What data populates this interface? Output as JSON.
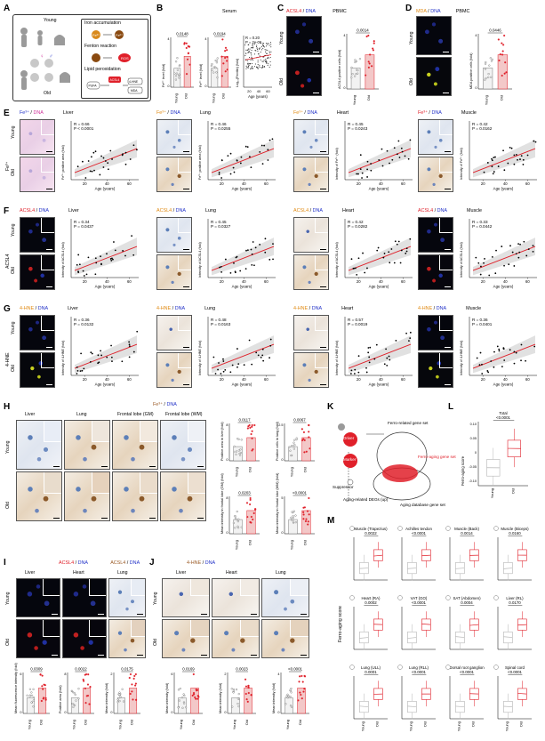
{
  "panel_letters": [
    "A",
    "B",
    "C",
    "D",
    "E",
    "F",
    "G",
    "H",
    "I",
    "J",
    "K",
    "L",
    "M"
  ],
  "panel_a": {
    "young": "Young",
    "old": "Old",
    "steps": [
      "Iron accumulation",
      "Fenton reaction",
      "Lipid peroxidation"
    ],
    "molecules": [
      "Fe³⁺",
      "Fe²⁺",
      "•OH",
      "PUFA",
      "ACSL4",
      "4-HNE",
      "MDA"
    ]
  },
  "panel_b": {
    "title": "Serum",
    "ylabel_1": "Fe²⁺ level (fold)",
    "ylabel_2": "Fe³⁺ level (fold)",
    "ylabel_3": "Log₁₀(Ferritin) (fold)",
    "pvalue_1": "0.0148",
    "pvalue_2": "0.0194",
    "corr_r": "R = 0.20",
    "corr_p": "P = 2e-06",
    "xlabel": "Age (years)",
    "groups": [
      "Young",
      "Old"
    ]
  },
  "panel_c": {
    "stain_red": "ACSL4",
    "stain_blue": "DNA",
    "title": "PBMC",
    "ylabel": "ACSL4 positive cells (fold)",
    "pvalue": "0.0014",
    "rows": [
      "Young",
      "Old"
    ]
  },
  "panel_d": {
    "stain_orange": "MDA",
    "stain_blue": "DNA",
    "title": "PBMC",
    "ylabel": "MDA positive cells (fold)",
    "pvalue": "0.0446",
    "rows": [
      "Young",
      "Old"
    ]
  },
  "row_e": {
    "marker": "Fe³⁺",
    "side_label": "Fe³⁺",
    "panels": [
      {
        "stain": "Fe³⁺",
        "second": "DNA",
        "tissue": "Liver",
        "r": "R = 0.66",
        "p": "P < 0.0001",
        "ylabel": "Fe³⁺ positive area (fold)"
      },
      {
        "stain": "Fe³⁺",
        "second": "DNA",
        "tissue": "Lung",
        "r": "R = 0.46",
        "p": "P = 0.0255",
        "ylabel": "Fe³⁺ positive area (fold)"
      },
      {
        "stain": "Fe³⁺",
        "second": "DNA",
        "tissue": "Heart",
        "r": "R = 0.45",
        "p": "P = 0.0243",
        "ylabel": "Intensity of Fe³⁺ (fold)"
      },
      {
        "stain": "Fe³⁺",
        "second": "DNA",
        "tissue": "Muscle",
        "r": "R = 0.42",
        "p": "P = 0.0162",
        "ylabel": "Intensity of Fe³⁺ (fold)"
      }
    ]
  },
  "row_f": {
    "side_label": "ACSL4",
    "panels": [
      {
        "stain": "ACSL4",
        "second": "DNA",
        "tissue": "Liver",
        "r": "R = 0.34",
        "p": "P = 0.0437",
        "ylabel": "Intensity of ACSL4 (fold)"
      },
      {
        "stain": "ACSL4",
        "second": "DNA",
        "tissue": "Lung",
        "r": "R = 0.45",
        "p": "P = 0.0327",
        "ylabel": "Intensity of ACSL4 (fold)"
      },
      {
        "stain": "ACSL4",
        "second": "DNA",
        "tissue": "Heart",
        "r": "R = 0.42",
        "p": "P = 0.0282",
        "ylabel": "Intensity of ACSL4 (fold)"
      },
      {
        "stain": "ACSL4",
        "second": "DNA",
        "tissue": "Muscle",
        "r": "R = 0.33",
        "p": "P = 0.0442",
        "ylabel": "Intensity of ACSL4 (fold)"
      }
    ]
  },
  "row_g": {
    "side_label": "4-HNE",
    "panels": [
      {
        "stain": "4-HNE",
        "second": "DNA",
        "tissue": "Liver",
        "r": "R = 0.36",
        "p": "P = 0.0132",
        "ylabel": "Intensity of 4-HNE (fold)"
      },
      {
        "stain": "4-HNE",
        "second": "DNA",
        "tissue": "Lung",
        "r": "R = 0.48",
        "p": "P = 0.0163",
        "ylabel": "Intensity of 4-HNE (fold)"
      },
      {
        "stain": "4-HNE",
        "second": "DNA",
        "tissue": "Heart",
        "r": "R = 0.57",
        "p": "P = 0.0019",
        "ylabel": "Intensity of 4-HNE (fold)"
      },
      {
        "stain": "4-HNE",
        "second": "DNA",
        "tissue": "Muscle",
        "r": "R = 0.36",
        "p": "P = 0.0401",
        "ylabel": "Intensity of 4-HNE (fold)"
      }
    ]
  },
  "age_axis": {
    "xlabel": "Age (years)",
    "ticks": [
      "20",
      "40",
      "60"
    ]
  },
  "row_labels": {
    "young": "Young",
    "old": "Old"
  },
  "panel_h": {
    "stain": "Fe³⁺",
    "second": "DNA",
    "tissues": [
      "Liver",
      "Lung",
      "Frontal lobe (GM)",
      "Frontal lobe (WM)"
    ],
    "p1": "0.0117",
    "p2": "0.0067",
    "p3": "0.0203",
    "p4": "<0.0001",
    "y1": "Positive area in liver (fold)",
    "y2": "Positive cells in lung (fold)",
    "y3": "Mean intensity in frontal lobe (GM) (fold)",
    "y4": "Mean intensity in frontal lobe (WM) (fold)"
  },
  "panel_i": {
    "stain": "ACSL4",
    "second": "DNA",
    "stain2": "ACSL4",
    "tissues": [
      "Liver",
      "Heart",
      "Lung"
    ],
    "p1": "0.0309",
    "p2": "0.0022",
    "p3": "0.0175",
    "y1": "Mean fluorescence intensity (fold)",
    "y2": "Positive area (fold)",
    "y3": "Mean intensity (fold)"
  },
  "panel_j": {
    "stain": "4-HNE",
    "second": "DNA",
    "p1": "0.0169",
    "p2": "0.0023",
    "p3": "<0.0001",
    "y1": "Mean intensity (fold)",
    "y2": "Mean intensity (fold)",
    "y3": "Mean intensity (fold)"
  },
  "panel_k": {
    "driver": "Driver",
    "marker": "Marker",
    "suppressor": "Suppressor",
    "ferro_set": "Ferro-related gene set",
    "aging_set": "Ferro-aging gene set",
    "degs": "Aging-related DEGs (up)",
    "database": "Aging database gene set"
  },
  "panel_l": {
    "title": "Total",
    "pvalue": "<0.0001",
    "ylabel": "Ferro-aging score"
  },
  "panel_m": {
    "ylabel": "Ferro-aging score",
    "groups": [
      "Young",
      "Old"
    ]
  },
  "chart_data": [
    {
      "type": "box",
      "panel": "L",
      "title": "Total",
      "categories": [
        "Young",
        "Old"
      ],
      "ylabel": "Ferro-aging score",
      "ylim": [
        -0.15,
        0.15
      ],
      "medians": [
        -0.05,
        0.02
      ]
    },
    {
      "type": "box",
      "panel": "M",
      "ylabel": "Ferro-aging score",
      "categories": [
        "Young",
        "Old"
      ],
      "subplots": [
        {
          "title": "Muscle (Trapezius)",
          "p": "0.0022"
        },
        {
          "title": "Achilles tendon",
          "p": "<0.0001"
        },
        {
          "title": "Muscle (Back)",
          "p": "0.0014"
        },
        {
          "title": "Muscle (Biceps)",
          "p": "0.0160"
        },
        {
          "title": "Heart (RA)",
          "p": "0.0002"
        },
        {
          "title": "VAT (GO)",
          "p": "<0.0001"
        },
        {
          "title": "SAT (Abdomen)",
          "p": "0.0004"
        },
        {
          "title": "Liver (RL)",
          "p": "0.0170"
        },
        {
          "title": "Lung (ULL)",
          "p": "0.0001"
        },
        {
          "title": "Lung (RLL)",
          "p": "<0.0001"
        },
        {
          "title": "Dorsal root ganglion",
          "p": "<0.0001"
        },
        {
          "title": "Spinal cord",
          "p": "<0.0001"
        }
      ]
    },
    {
      "type": "scatter",
      "panel": "E-G",
      "xlabel": "Age (years)",
      "xlim": [
        10,
        70
      ],
      "note": "correlation of marker intensity with age"
    }
  ]
}
